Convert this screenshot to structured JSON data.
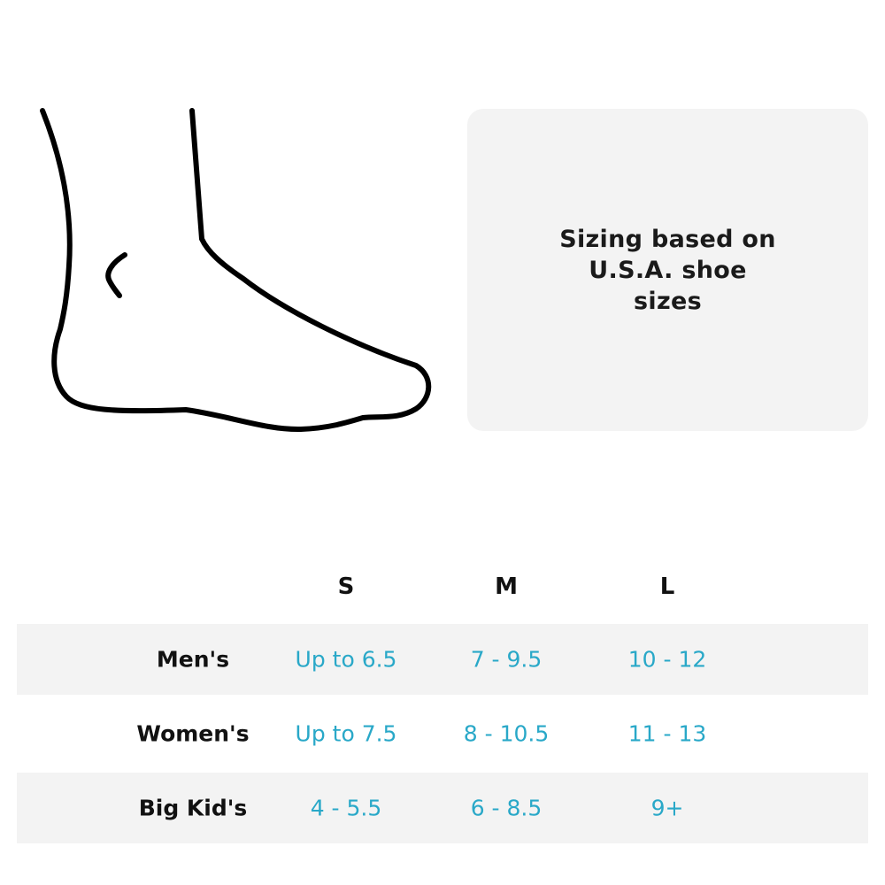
{
  "note": "Sizing based on U.S.A. shoe sizes",
  "table": {
    "headers": [
      "S",
      "M",
      "L"
    ],
    "rows": [
      {
        "label": "Men's",
        "values": [
          "Up to 6.5",
          "7 - 9.5",
          "10 - 12"
        ]
      },
      {
        "label": "Women's",
        "values": [
          "Up to 7.5",
          "8 - 10.5",
          "11 - 13"
        ]
      },
      {
        "label": "Big Kid's",
        "values": [
          "4 - 5.5",
          "6 - 8.5",
          "9+"
        ]
      }
    ]
  },
  "colors": {
    "value_text": "#29a8c8",
    "row_shade": "#f3f3f3",
    "panel": "#f3f3f3"
  }
}
